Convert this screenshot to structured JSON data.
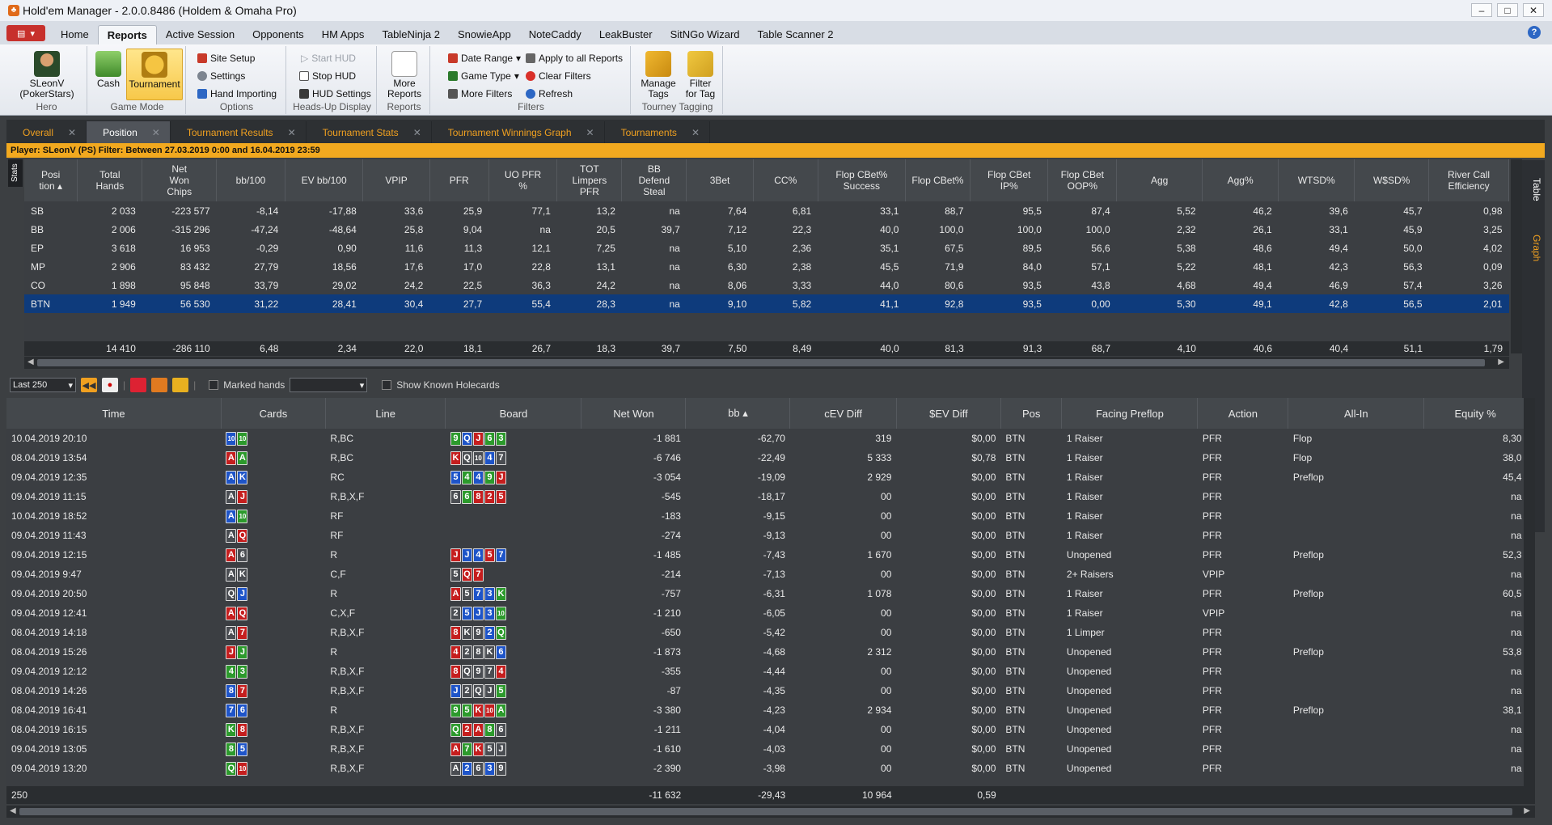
{
  "window": {
    "title": "Hold'em Manager - 2.0.0.8486 (Holdem & Omaha Pro)"
  },
  "menu": {
    "tabs": [
      "Home",
      "Reports",
      "Active Session",
      "Opponents",
      "HM Apps",
      "TableNinja 2",
      "SnowieApp",
      "NoteCaddy",
      "LeakBuster",
      "SitNGo Wizard",
      "Table Scanner 2"
    ],
    "active": "Reports"
  },
  "ribbon": {
    "hero": {
      "name": "SLeonV",
      "site": "(PokerStars)",
      "group": "Hero"
    },
    "game_mode": {
      "cash": "Cash",
      "tournament": "Tournament",
      "group": "Game Mode"
    },
    "options": {
      "site_setup": "Site Setup",
      "settings": "Settings",
      "hand_importing": "Hand Importing",
      "group": "Options"
    },
    "hud": {
      "start": "Start HUD",
      "stop": "Stop HUD",
      "settings": "HUD Settings",
      "group": "Heads-Up Display"
    },
    "reports": {
      "more_line1": "More",
      "more_line2": "Reports",
      "group": "Reports"
    },
    "filters": {
      "date_range": "Date Range",
      "game_type": "Game Type",
      "more_filters": "More Filters",
      "apply_all": "Apply to all Reports",
      "clear": "Clear Filters",
      "refresh": "Refresh",
      "group": "Filters"
    },
    "tagging": {
      "manage_l1": "Manage",
      "manage_l2": "Tags",
      "filter_l1": "Filter",
      "filter_l2": "for Tag",
      "group": "Tourney Tagging"
    }
  },
  "doc_tabs": [
    "Overall",
    "Position",
    "Tournament Results",
    "Tournament Stats",
    "Tournament Winnings Graph",
    "Tournaments"
  ],
  "doc_tab_active": "Position",
  "filter_bar": "Player: SLeonV (PS)  Filter: Between 27.03.2019 0:00 and 16.04.2019 23:59",
  "side": {
    "stats": "Stats",
    "table": "Table",
    "graph": "Graph"
  },
  "stats_table": {
    "headers": [
      [
        "Posi",
        "tion"
      ],
      [
        "Total",
        "Hands"
      ],
      [
        "Net",
        "Won",
        "Chips"
      ],
      [
        "bb/100"
      ],
      [
        "EV bb/100"
      ],
      [
        "VPIP"
      ],
      [
        "PFR"
      ],
      [
        "UO PFR",
        "%"
      ],
      [
        "TOT",
        "Limpers",
        "PFR"
      ],
      [
        "BB",
        "Defend",
        "Steal"
      ],
      [
        "3Bet"
      ],
      [
        "CC%"
      ],
      [
        "Flop CBet%",
        "Success"
      ],
      [
        "Flop CBet%"
      ],
      [
        "Flop CBet",
        "IP%"
      ],
      [
        "Flop CBet",
        "OOP%"
      ],
      [
        "Agg"
      ],
      [
        "Agg%"
      ],
      [
        "WTSD%"
      ],
      [
        "W$SD%"
      ],
      [
        "River Call",
        "Efficiency"
      ]
    ],
    "rows": [
      [
        "SB",
        "2 033",
        "-223 577",
        "-8,14",
        "-17,88",
        "33,6",
        "25,9",
        "77,1",
        "13,2",
        "na",
        "7,64",
        "6,81",
        "33,1",
        "88,7",
        "95,5",
        "87,4",
        "5,52",
        "46,2",
        "39,6",
        "45,7",
        "0,98"
      ],
      [
        "BB",
        "2 006",
        "-315 296",
        "-47,24",
        "-48,64",
        "25,8",
        "9,04",
        "na",
        "20,5",
        "39,7",
        "7,12",
        "22,3",
        "40,0",
        "100,0",
        "100,0",
        "100,0",
        "2,32",
        "26,1",
        "33,1",
        "45,9",
        "3,25"
      ],
      [
        "EP",
        "3 618",
        "16 953",
        "-0,29",
        "0,90",
        "11,6",
        "11,3",
        "12,1",
        "7,25",
        "na",
        "5,10",
        "2,36",
        "35,1",
        "67,5",
        "89,5",
        "56,6",
        "5,38",
        "48,6",
        "49,4",
        "50,0",
        "4,02"
      ],
      [
        "MP",
        "2 906",
        "83 432",
        "27,79",
        "18,56",
        "17,6",
        "17,0",
        "22,8",
        "13,1",
        "na",
        "6,30",
        "2,38",
        "45,5",
        "71,9",
        "84,0",
        "57,1",
        "5,22",
        "48,1",
        "42,3",
        "56,3",
        "0,09"
      ],
      [
        "CO",
        "1 898",
        "95 848",
        "33,79",
        "29,02",
        "24,2",
        "22,5",
        "36,3",
        "24,2",
        "na",
        "8,06",
        "3,33",
        "44,0",
        "80,6",
        "93,5",
        "43,8",
        "4,68",
        "49,4",
        "46,9",
        "57,4",
        "3,26"
      ],
      [
        "BTN",
        "1 949",
        "56 530",
        "31,22",
        "28,41",
        "30,4",
        "27,7",
        "55,4",
        "28,3",
        "na",
        "9,10",
        "5,82",
        "41,1",
        "92,8",
        "93,5",
        "0,00",
        "5,30",
        "49,1",
        "42,8",
        "56,5",
        "2,01"
      ]
    ],
    "selected_row": 5,
    "totals": [
      "",
      "14 410",
      "-286 110",
      "6,48",
      "2,34",
      "22,0",
      "18,1",
      "26,7",
      "18,3",
      "39,7",
      "7,50",
      "8,49",
      "40,0",
      "81,3",
      "91,3",
      "68,7",
      "4,10",
      "40,6",
      "40,4",
      "51,1",
      "1,79"
    ]
  },
  "hands_toolbar": {
    "range": "Last 250",
    "marked_hands": "Marked hands",
    "show_known": "Show Known Holecards"
  },
  "hands_table": {
    "headers": [
      "Time",
      "Cards",
      "Line",
      "Board",
      "Net Won",
      "bb",
      "cEV Diff",
      "$EV Diff",
      "Pos",
      "Facing Preflop",
      "Action",
      "All-In",
      "Equity %"
    ],
    "rows": [
      {
        "time": "10.04.2019 20:10",
        "cards": [
          [
            "10",
            "d"
          ],
          [
            "10",
            "c"
          ]
        ],
        "line": "R,BC",
        "board": [
          [
            "9",
            "c"
          ],
          [
            "Q",
            "d"
          ],
          [
            "J",
            "h"
          ],
          [
            "6",
            "c"
          ],
          [
            "3",
            "c"
          ]
        ],
        "net": "-1 881",
        "bb": "-62,70",
        "cev": "319",
        "sev": "$0,00",
        "pos": "BTN",
        "facing": "1 Raiser",
        "action": "PFR",
        "allin": "Flop",
        "eq": "8,30"
      },
      {
        "time": "08.04.2019 13:54",
        "cards": [
          [
            "A",
            "h"
          ],
          [
            "A",
            "c"
          ]
        ],
        "line": "R,BC",
        "board": [
          [
            "K",
            "h"
          ],
          [
            "Q",
            "s"
          ],
          [
            "10",
            "s"
          ],
          [
            "4",
            "d"
          ],
          [
            "7",
            "s"
          ]
        ],
        "net": "-6 746",
        "bb": "-22,49",
        "cev": "5 333",
        "sev": "$0,78",
        "pos": "BTN",
        "facing": "1 Raiser",
        "action": "PFR",
        "allin": "Flop",
        "eq": "38,0"
      },
      {
        "time": "09.04.2019 12:35",
        "cards": [
          [
            "A",
            "d"
          ],
          [
            "K",
            "d"
          ]
        ],
        "line": "RC",
        "board": [
          [
            "5",
            "d"
          ],
          [
            "4",
            "c"
          ],
          [
            "4",
            "d"
          ],
          [
            "9",
            "c"
          ],
          [
            "J",
            "h"
          ]
        ],
        "net": "-3 054",
        "bb": "-19,09",
        "cev": "2 929",
        "sev": "$0,00",
        "pos": "BTN",
        "facing": "1 Raiser",
        "action": "PFR",
        "allin": "Preflop",
        "eq": "45,4"
      },
      {
        "time": "09.04.2019 11:15",
        "cards": [
          [
            "A",
            "s"
          ],
          [
            "J",
            "h"
          ]
        ],
        "line": "R,B,X,F",
        "board": [
          [
            "6",
            "s"
          ],
          [
            "6",
            "c"
          ],
          [
            "8",
            "h"
          ],
          [
            "2",
            "h"
          ],
          [
            "5",
            "h"
          ]
        ],
        "net": "-545",
        "bb": "-18,17",
        "cev": "00",
        "sev": "$0,00",
        "pos": "BTN",
        "facing": "1 Raiser",
        "action": "PFR",
        "allin": "",
        "eq": "na"
      },
      {
        "time": "10.04.2019 18:52",
        "cards": [
          [
            "A",
            "d"
          ],
          [
            "10",
            "c"
          ]
        ],
        "line": "RF",
        "board": [],
        "net": "-183",
        "bb": "-9,15",
        "cev": "00",
        "sev": "$0,00",
        "pos": "BTN",
        "facing": "1 Raiser",
        "action": "PFR",
        "allin": "",
        "eq": "na"
      },
      {
        "time": "09.04.2019 11:43",
        "cards": [
          [
            "A",
            "s"
          ],
          [
            "Q",
            "h"
          ]
        ],
        "line": "RF",
        "board": [],
        "net": "-274",
        "bb": "-9,13",
        "cev": "00",
        "sev": "$0,00",
        "pos": "BTN",
        "facing": "1 Raiser",
        "action": "PFR",
        "allin": "",
        "eq": "na"
      },
      {
        "time": "09.04.2019 12:15",
        "cards": [
          [
            "A",
            "h"
          ],
          [
            "6",
            "s"
          ]
        ],
        "line": "R",
        "board": [
          [
            "J",
            "h"
          ],
          [
            "J",
            "d"
          ],
          [
            "4",
            "d"
          ],
          [
            "5",
            "h"
          ],
          [
            "7",
            "d"
          ]
        ],
        "net": "-1 485",
        "bb": "-7,43",
        "cev": "1 670",
        "sev": "$0,00",
        "pos": "BTN",
        "facing": "Unopened",
        "action": "PFR",
        "allin": "Preflop",
        "eq": "52,3"
      },
      {
        "time": "09.04.2019 9:47",
        "cards": [
          [
            "A",
            "s"
          ],
          [
            "K",
            "s"
          ]
        ],
        "line": "C,F",
        "board": [
          [
            "5",
            "s"
          ],
          [
            "Q",
            "h"
          ],
          [
            "7",
            "h"
          ]
        ],
        "net": "-214",
        "bb": "-7,13",
        "cev": "00",
        "sev": "$0,00",
        "pos": "BTN",
        "facing": "2+ Raisers",
        "action": "VPIP",
        "allin": "",
        "eq": "na"
      },
      {
        "time": "09.04.2019 20:50",
        "cards": [
          [
            "Q",
            "s"
          ],
          [
            "J",
            "d"
          ]
        ],
        "line": "R",
        "board": [
          [
            "A",
            "h"
          ],
          [
            "5",
            "s"
          ],
          [
            "7",
            "d"
          ],
          [
            "3",
            "d"
          ],
          [
            "K",
            "c"
          ]
        ],
        "net": "-757",
        "bb": "-6,31",
        "cev": "1 078",
        "sev": "$0,00",
        "pos": "BTN",
        "facing": "1 Raiser",
        "action": "PFR",
        "allin": "Preflop",
        "eq": "60,5"
      },
      {
        "time": "09.04.2019 12:41",
        "cards": [
          [
            "A",
            "h"
          ],
          [
            "Q",
            "h"
          ]
        ],
        "line": "C,X,F",
        "board": [
          [
            "2",
            "s"
          ],
          [
            "5",
            "d"
          ],
          [
            "J",
            "d"
          ],
          [
            "3",
            "d"
          ],
          [
            "10",
            "c"
          ]
        ],
        "net": "-1 210",
        "bb": "-6,05",
        "cev": "00",
        "sev": "$0,00",
        "pos": "BTN",
        "facing": "1 Raiser",
        "action": "VPIP",
        "allin": "",
        "eq": "na"
      },
      {
        "time": "08.04.2019 14:18",
        "cards": [
          [
            "A",
            "s"
          ],
          [
            "7",
            "h"
          ]
        ],
        "line": "R,B,X,F",
        "board": [
          [
            "8",
            "h"
          ],
          [
            "K",
            "s"
          ],
          [
            "9",
            "s"
          ],
          [
            "2",
            "d"
          ],
          [
            "Q",
            "c"
          ]
        ],
        "net": "-650",
        "bb": "-5,42",
        "cev": "00",
        "sev": "$0,00",
        "pos": "BTN",
        "facing": "1 Limper",
        "action": "PFR",
        "allin": "",
        "eq": "na"
      },
      {
        "time": "08.04.2019 15:26",
        "cards": [
          [
            "J",
            "h"
          ],
          [
            "J",
            "c"
          ]
        ],
        "line": "R",
        "board": [
          [
            "4",
            "h"
          ],
          [
            "2",
            "s"
          ],
          [
            "8",
            "s"
          ],
          [
            "K",
            "s"
          ],
          [
            "6",
            "d"
          ]
        ],
        "net": "-1 873",
        "bb": "-4,68",
        "cev": "2 312",
        "sev": "$0,00",
        "pos": "BTN",
        "facing": "Unopened",
        "action": "PFR",
        "allin": "Preflop",
        "eq": "53,8"
      },
      {
        "time": "09.04.2019 12:12",
        "cards": [
          [
            "4",
            "c"
          ],
          [
            "3",
            "c"
          ]
        ],
        "line": "R,B,X,F",
        "board": [
          [
            "8",
            "h"
          ],
          [
            "Q",
            "s"
          ],
          [
            "9",
            "s"
          ],
          [
            "7",
            "s"
          ],
          [
            "4",
            "h"
          ]
        ],
        "net": "-355",
        "bb": "-4,44",
        "cev": "00",
        "sev": "$0,00",
        "pos": "BTN",
        "facing": "Unopened",
        "action": "PFR",
        "allin": "",
        "eq": "na"
      },
      {
        "time": "08.04.2019 14:26",
        "cards": [
          [
            "8",
            "d"
          ],
          [
            "7",
            "h"
          ]
        ],
        "line": "R,B,X,F",
        "board": [
          [
            "J",
            "d"
          ],
          [
            "2",
            "s"
          ],
          [
            "Q",
            "s"
          ],
          [
            "J",
            "s"
          ],
          [
            "5",
            "c"
          ]
        ],
        "net": "-87",
        "bb": "-4,35",
        "cev": "00",
        "sev": "$0,00",
        "pos": "BTN",
        "facing": "Unopened",
        "action": "PFR",
        "allin": "",
        "eq": "na"
      },
      {
        "time": "08.04.2019 16:41",
        "cards": [
          [
            "7",
            "d"
          ],
          [
            "6",
            "d"
          ]
        ],
        "line": "R",
        "board": [
          [
            "9",
            "c"
          ],
          [
            "5",
            "c"
          ],
          [
            "K",
            "h"
          ],
          [
            "10",
            "h"
          ],
          [
            "A",
            "c"
          ]
        ],
        "net": "-3 380",
        "bb": "-4,23",
        "cev": "2 934",
        "sev": "$0,00",
        "pos": "BTN",
        "facing": "Unopened",
        "action": "PFR",
        "allin": "Preflop",
        "eq": "38,1"
      },
      {
        "time": "08.04.2019 16:15",
        "cards": [
          [
            "K",
            "c"
          ],
          [
            "8",
            "h"
          ]
        ],
        "line": "R,B,X,F",
        "board": [
          [
            "Q",
            "c"
          ],
          [
            "2",
            "h"
          ],
          [
            "A",
            "h"
          ],
          [
            "8",
            "c"
          ],
          [
            "6",
            "s"
          ]
        ],
        "net": "-1 211",
        "bb": "-4,04",
        "cev": "00",
        "sev": "$0,00",
        "pos": "BTN",
        "facing": "Unopened",
        "action": "PFR",
        "allin": "",
        "eq": "na"
      },
      {
        "time": "09.04.2019 13:05",
        "cards": [
          [
            "8",
            "c"
          ],
          [
            "5",
            "d"
          ]
        ],
        "line": "R,B,X,F",
        "board": [
          [
            "A",
            "h"
          ],
          [
            "7",
            "c"
          ],
          [
            "K",
            "h"
          ],
          [
            "5",
            "s"
          ],
          [
            "J",
            "s"
          ]
        ],
        "net": "-1 610",
        "bb": "-4,03",
        "cev": "00",
        "sev": "$0,00",
        "pos": "BTN",
        "facing": "Unopened",
        "action": "PFR",
        "allin": "",
        "eq": "na"
      },
      {
        "time": "09.04.2019 13:20",
        "cards": [
          [
            "Q",
            "c"
          ],
          [
            "10",
            "h"
          ]
        ],
        "line": "R,B,X,F",
        "board": [
          [
            "A",
            "s"
          ],
          [
            "2",
            "d"
          ],
          [
            "6",
            "s"
          ],
          [
            "3",
            "d"
          ],
          [
            "9",
            "s"
          ]
        ],
        "net": "-2 390",
        "bb": "-3,98",
        "cev": "00",
        "sev": "$0,00",
        "pos": "BTN",
        "facing": "Unopened",
        "action": "PFR",
        "allin": "",
        "eq": "na"
      }
    ],
    "footer": {
      "count": "250",
      "net": "-11 632",
      "bb": "-29,43",
      "cev": "10 964",
      "sev": "0,59"
    }
  },
  "colors": {
    "accent_orange": "#f2a91f",
    "selected_row": "#0e3b7c",
    "negative": "#ff6b6b",
    "positive": "#82d07a"
  }
}
